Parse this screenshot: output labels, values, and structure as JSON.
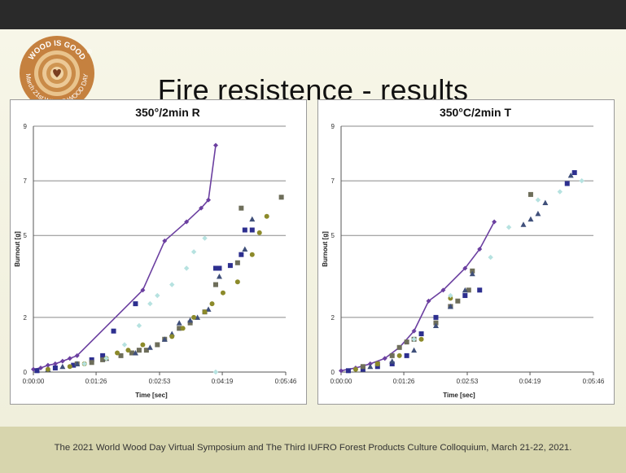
{
  "slide": {
    "title": "Fire resistence - results",
    "footer": "The 2021 World Wood Day Virtual Symposium and The Third IUFRO Forest Products Culture Colloquium, March 21-22, 2021."
  },
  "logo": {
    "text_top": "WOOD IS GOOD",
    "text_bottom": "March 21st WORLD WOOD DAY",
    "registered": "®"
  },
  "colors": {
    "purple": "#6b3fa0",
    "navy": "#2d2f8f",
    "gray_square": "#6e6e5a",
    "slate": "#3f4f7a",
    "olive": "#8c8a2a",
    "lightcyan": "#b6e2e0"
  },
  "chart_data": [
    {
      "type": "scatter",
      "title": "350°/2min R",
      "xlabel": "Time [sec]",
      "ylabel": "Burnout [g]",
      "xlim": [
        0,
        346
      ],
      "ylim": [
        0,
        9
      ],
      "x_ticks": [
        {
          "value": 0,
          "label": "0:00:00"
        },
        {
          "value": 86,
          "label": "0:01:26"
        },
        {
          "value": 173,
          "label": "0:02:53"
        },
        {
          "value": 259,
          "label": "0:04:19"
        },
        {
          "value": 346,
          "label": "0:05:46"
        }
      ],
      "y_ticks": [
        {
          "value": 0,
          "label": "0"
        },
        {
          "value": 2,
          "label": "2"
        },
        {
          "value": 5,
          "label": "5"
        },
        {
          "value": 7,
          "label": "7"
        },
        {
          "value": 9,
          "label": "9"
        }
      ],
      "series": [
        {
          "marker": "diamond-line",
          "color": "#6b3fa0",
          "x": [
            0,
            10,
            20,
            30,
            40,
            50,
            60,
            150,
            180,
            210,
            230,
            240,
            250
          ],
          "y": [
            0.1,
            0.15,
            0.25,
            0.3,
            0.4,
            0.5,
            0.6,
            3.0,
            4.8,
            5.5,
            6.0,
            6.3,
            8.3
          ]
        },
        {
          "marker": "square",
          "color": "#2d2f8f",
          "x": [
            5,
            30,
            55,
            80,
            95,
            110,
            140,
            250,
            255,
            270,
            285,
            290,
            300
          ],
          "y": [
            0.05,
            0.15,
            0.25,
            0.45,
            0.6,
            1.5,
            2.5,
            3.8,
            3.8,
            3.9,
            4.3,
            5.2,
            5.2
          ]
        },
        {
          "marker": "square",
          "color": "#6e6e5a",
          "x": [
            60,
            80,
            95,
            120,
            135,
            145,
            155,
            170,
            180,
            200,
            215,
            235,
            250,
            280,
            285,
            340
          ],
          "y": [
            0.3,
            0.35,
            0.45,
            0.6,
            0.7,
            0.8,
            0.8,
            1.0,
            1.2,
            1.6,
            1.8,
            2.2,
            3.2,
            4.0,
            6.0,
            6.4
          ]
        },
        {
          "marker": "triangle",
          "color": "#3f4f7a",
          "x": [
            20,
            40,
            60,
            100,
            140,
            160,
            180,
            190,
            200,
            215,
            225,
            240,
            255,
            290,
            300
          ],
          "y": [
            0.1,
            0.2,
            0.3,
            0.5,
            0.7,
            0.9,
            1.2,
            1.4,
            1.8,
            1.9,
            2.0,
            2.3,
            3.5,
            4.5,
            5.6
          ]
        },
        {
          "marker": "circle",
          "color": "#8c8a2a",
          "x": [
            20,
            50,
            70,
            100,
            115,
            130,
            150,
            190,
            205,
            220,
            235,
            245,
            260,
            280,
            300,
            310,
            320
          ],
          "y": [
            0.1,
            0.2,
            0.3,
            0.5,
            0.7,
            0.8,
            1.0,
            1.3,
            1.6,
            2.0,
            2.2,
            2.5,
            2.9,
            3.3,
            4.3,
            5.1,
            5.7
          ]
        },
        {
          "marker": "diamond",
          "color": "#b6e2e0",
          "x": [
            70,
            100,
            125,
            145,
            160,
            170,
            190,
            210,
            220,
            235,
            250
          ],
          "y": [
            0.3,
            0.5,
            1.0,
            1.7,
            2.5,
            2.8,
            3.2,
            3.8,
            4.4,
            4.9,
            0.0
          ]
        }
      ]
    },
    {
      "type": "scatter",
      "title": "350°C/2min T",
      "xlabel": "Time [sec]",
      "ylabel": "Burnout [g]",
      "xlim": [
        0,
        346
      ],
      "ylim": [
        0,
        9
      ],
      "x_ticks": [
        {
          "value": 0,
          "label": "0:00:00"
        },
        {
          "value": 86,
          "label": "0:01:26"
        },
        {
          "value": 173,
          "label": "0:02:53"
        },
        {
          "value": 259,
          "label": "0:04:19"
        },
        {
          "value": 346,
          "label": "0:05:46"
        }
      ],
      "y_ticks": [
        {
          "value": 0,
          "label": "0"
        },
        {
          "value": 2,
          "label": "2"
        },
        {
          "value": 5,
          "label": "5"
        },
        {
          "value": 7,
          "label": "7"
        },
        {
          "value": 9,
          "label": "9"
        }
      ],
      "series": [
        {
          "marker": "diamond-line",
          "color": "#6b3fa0",
          "x": [
            0,
            20,
            40,
            60,
            80,
            100,
            120,
            140,
            170,
            190,
            210
          ],
          "y": [
            0.05,
            0.15,
            0.3,
            0.5,
            0.9,
            1.5,
            2.6,
            3.0,
            3.8,
            4.5,
            5.5
          ]
        },
        {
          "marker": "square",
          "color": "#2d2f8f",
          "x": [
            10,
            30,
            50,
            70,
            90,
            110,
            130,
            150,
            170,
            190,
            310,
            320
          ],
          "y": [
            0.05,
            0.1,
            0.2,
            0.3,
            0.6,
            1.4,
            2.0,
            2.4,
            2.8,
            3.0,
            6.9,
            7.3
          ]
        },
        {
          "marker": "square",
          "color": "#6e6e5a",
          "x": [
            30,
            50,
            70,
            80,
            90,
            100,
            130,
            150,
            160,
            175,
            180,
            260
          ],
          "y": [
            0.2,
            0.3,
            0.6,
            0.9,
            1.1,
            1.2,
            1.8,
            2.4,
            2.6,
            3.0,
            3.7,
            6.5
          ]
        },
        {
          "marker": "triangle",
          "color": "#3f4f7a",
          "x": [
            40,
            70,
            100,
            130,
            150,
            170,
            180,
            250,
            260,
            270,
            280,
            315
          ],
          "y": [
            0.2,
            0.4,
            0.8,
            1.7,
            2.4,
            3.0,
            3.6,
            5.4,
            5.6,
            5.8,
            6.2,
            7.2
          ]
        },
        {
          "marker": "circle",
          "color": "#8c8a2a",
          "x": [
            20,
            50,
            80,
            110,
            150
          ],
          "y": [
            0.1,
            0.3,
            0.6,
            1.2,
            2.7
          ]
        },
        {
          "marker": "diamond",
          "color": "#b6e2e0",
          "x": [
            100,
            150,
            205,
            230,
            270,
            300,
            330
          ],
          "y": [
            1.2,
            2.8,
            4.2,
            5.3,
            6.3,
            6.6,
            7.0
          ]
        }
      ]
    }
  ]
}
